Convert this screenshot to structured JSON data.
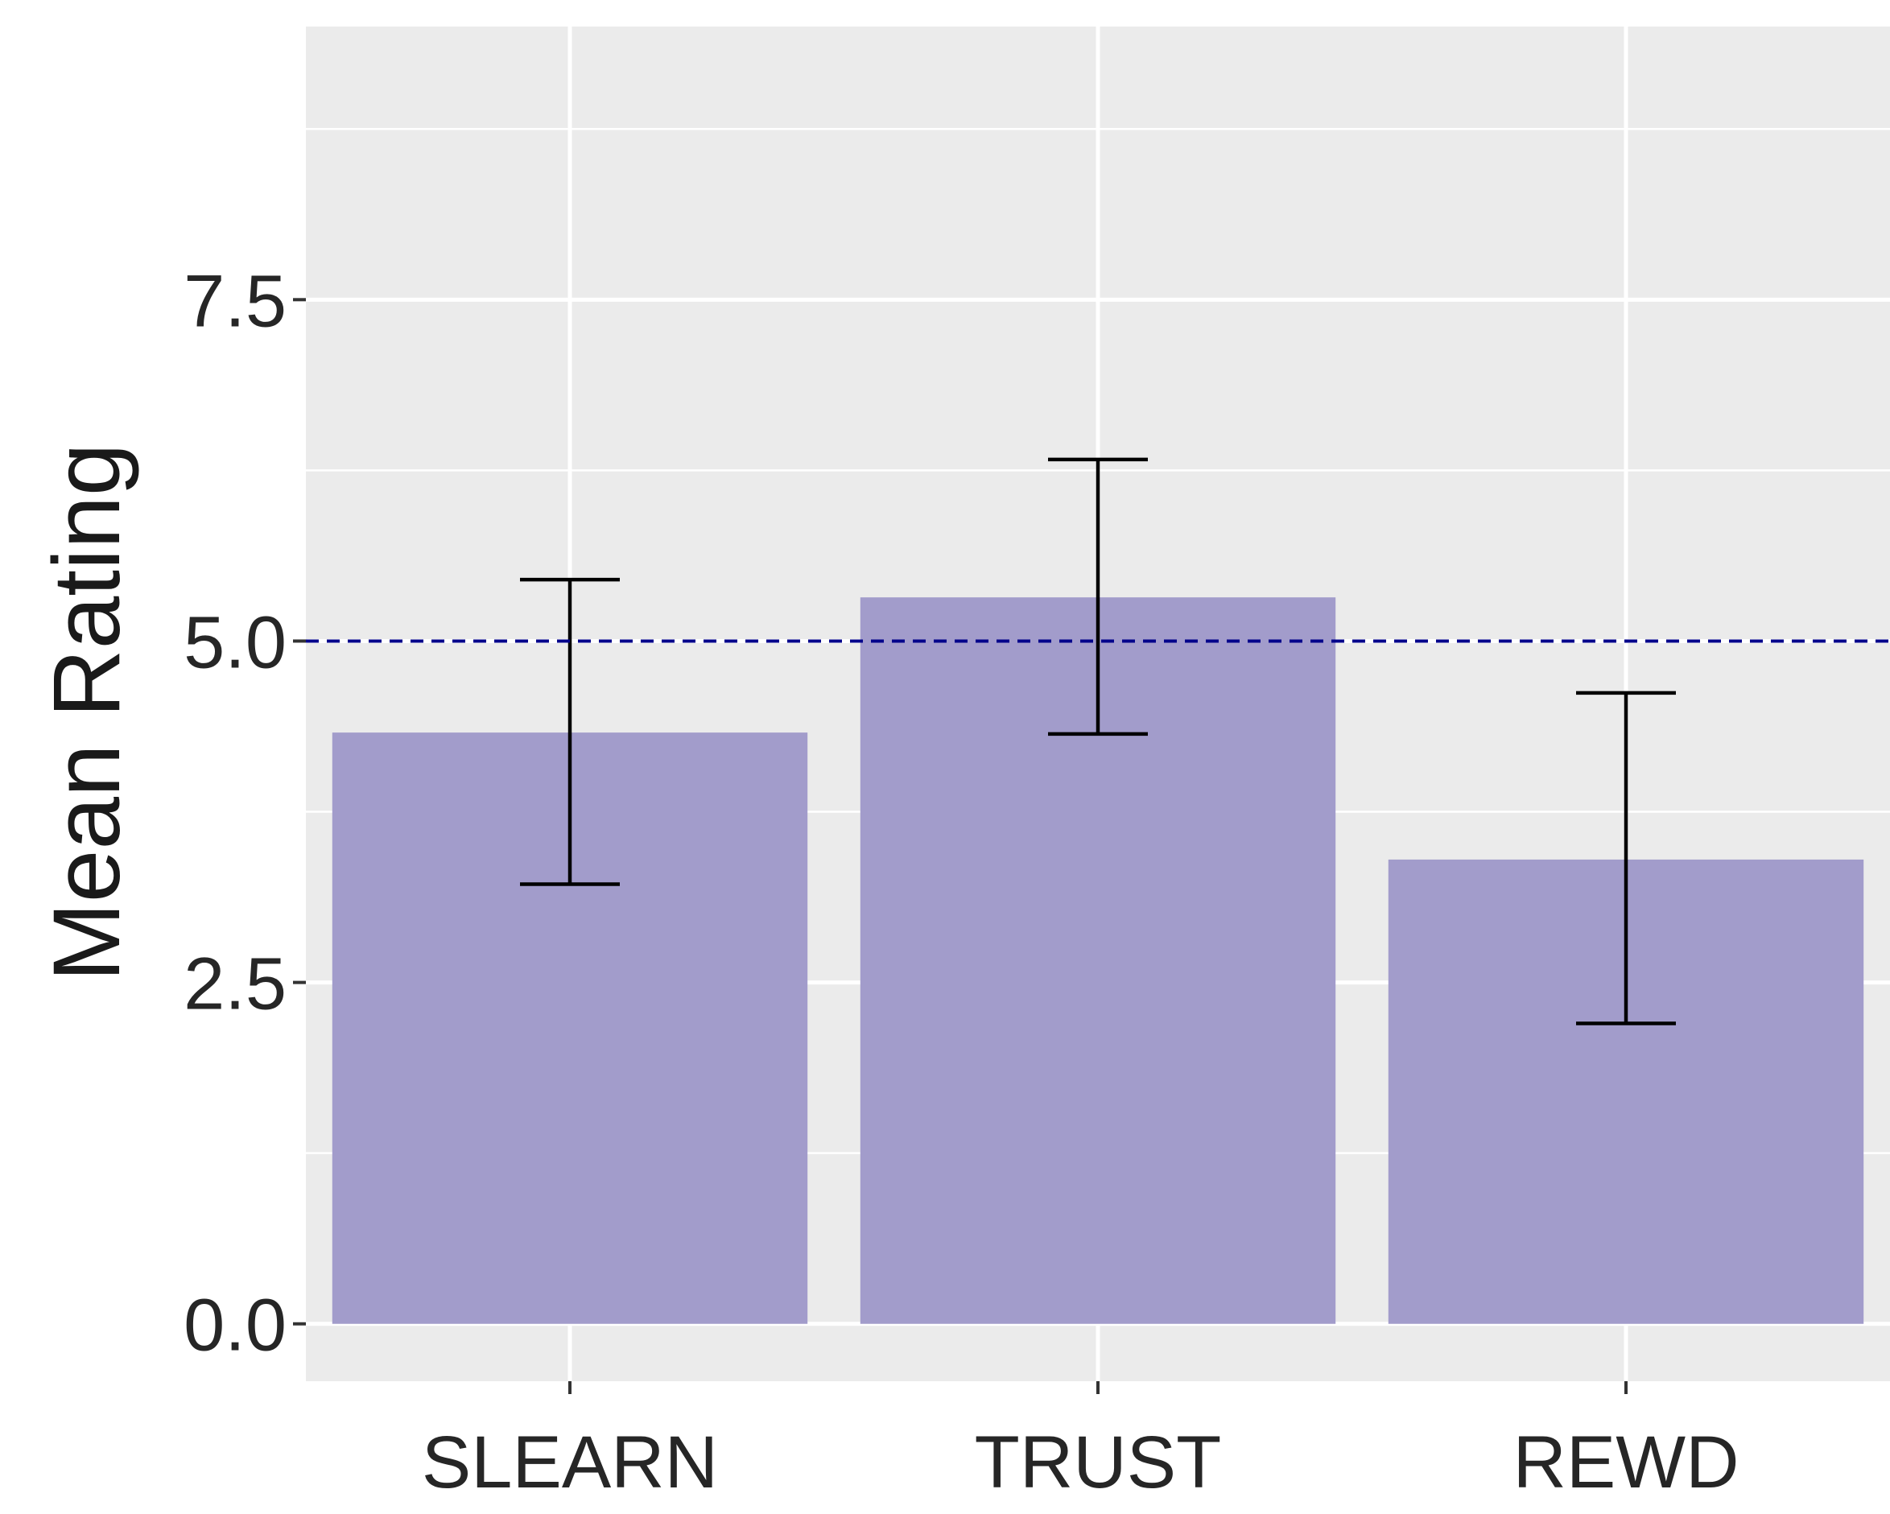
{
  "chart_data": {
    "type": "bar",
    "title": "",
    "xlabel": "",
    "ylabel": "Mean Rating",
    "categories": [
      "SLEARN",
      "TRUST",
      "REWD"
    ],
    "values": [
      4.33,
      5.32,
      3.4
    ],
    "error_bars": {
      "lower": [
        3.22,
        4.32,
        2.2
      ],
      "upper": [
        5.45,
        6.33,
        4.62
      ]
    },
    "ylim": [
      -0.42,
      9.5
    ],
    "yticks": [
      0.0,
      2.5,
      5.0,
      7.5
    ],
    "ytick_labels": [
      "0.0",
      "2.5",
      "5.0",
      "7.5"
    ],
    "reference_line": {
      "y": 5.0,
      "style": "dashed",
      "color": "#00008b"
    },
    "grid": true,
    "legend": "none",
    "colors": {
      "bar": "#a29ccb",
      "panel_background": "#ebebeb",
      "grid_major": "#ffffff",
      "error_bar": "#000000"
    }
  }
}
